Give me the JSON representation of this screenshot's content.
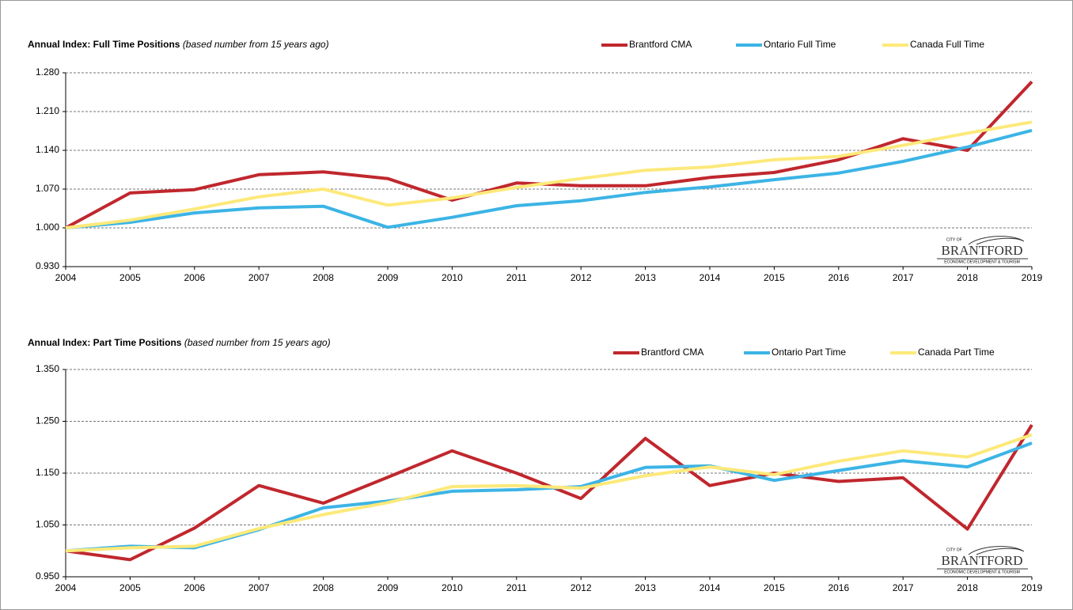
{
  "logo": {
    "city": "CITY OF",
    "name": "BRANTFORD",
    "tagline": "ECONOMIC DEVELOPMENT & TOURISM"
  },
  "chart_data": [
    {
      "type": "line",
      "title": "Annual Index: Full Time Positions",
      "subtitle": "(based number from 15 years ago)",
      "categories": [
        "2004",
        "2005",
        "2006",
        "2007",
        "2008",
        "2009",
        "2010",
        "2011",
        "2012",
        "2013",
        "2014",
        "2015",
        "2016",
        "2017",
        "2018",
        "2019"
      ],
      "ylim": [
        0.93,
        1.28
      ],
      "yticks": [
        {
          "value": 0.93,
          "label": "0.930"
        },
        {
          "value": 1,
          "label": "1.000"
        },
        {
          "value": 1.07,
          "label": "1.070"
        },
        {
          "value": 1.14,
          "label": "1.140"
        },
        {
          "value": 1.21,
          "label": "1.210"
        },
        {
          "value": 1.28,
          "label": "1.280"
        }
      ],
      "grid": true,
      "legend": "top-right",
      "series": [
        {
          "name": "Brantford CMA",
          "color": "#c0272d",
          "values": [
            1.0,
            1.063,
            1.069,
            1.096,
            1.101,
            1.089,
            1.05,
            1.081,
            1.076,
            1.076,
            1.091,
            1.1,
            1.123,
            1.161,
            1.14,
            1.264
          ]
        },
        {
          "name": "Ontario Full Time",
          "color": "#3cb4e5",
          "values": [
            1.0,
            1.01,
            1.027,
            1.036,
            1.039,
            1.001,
            1.019,
            1.04,
            1.049,
            1.064,
            1.074,
            1.087,
            1.099,
            1.12,
            1.146,
            1.176
          ]
        },
        {
          "name": "Canada Full Time",
          "color": "#fde97a",
          "values": [
            1.0,
            1.014,
            1.034,
            1.056,
            1.07,
            1.041,
            1.054,
            1.073,
            1.089,
            1.104,
            1.11,
            1.123,
            1.129,
            1.149,
            1.171,
            1.191
          ]
        }
      ]
    },
    {
      "type": "line",
      "title": "Annual Index: Part Time Positions",
      "subtitle": "(based number from 15 years ago)",
      "categories": [
        "2004",
        "2005",
        "2006",
        "2007",
        "2008",
        "2009",
        "2010",
        "2011",
        "2012",
        "2013",
        "2014",
        "2015",
        "2016",
        "2017",
        "2018",
        "2019"
      ],
      "ylim": [
        0.95,
        1.35
      ],
      "yticks": [
        {
          "value": 0.95,
          "label": "0.950"
        },
        {
          "value": 1.05,
          "label": "1.050"
        },
        {
          "value": 1.15,
          "label": "1.150"
        },
        {
          "value": 1.25,
          "label": "1.250"
        },
        {
          "value": 1.35,
          "label": "1.350"
        }
      ],
      "grid": true,
      "legend": "top-right",
      "series": [
        {
          "name": "Brantford CMA",
          "color": "#c0272d",
          "values": [
            1.0,
            0.983,
            1.044,
            1.126,
            1.092,
            1.142,
            1.193,
            1.15,
            1.101,
            1.217,
            1.126,
            1.15,
            1.134,
            1.141,
            1.042,
            1.243
          ]
        },
        {
          "name": "Ontario Part Time",
          "color": "#3cb4e5",
          "values": [
            1.0,
            1.009,
            1.006,
            1.041,
            1.083,
            1.096,
            1.115,
            1.118,
            1.124,
            1.161,
            1.164,
            1.136,
            1.155,
            1.174,
            1.162,
            1.208
          ]
        },
        {
          "name": "Canada Part Time",
          "color": "#fde97a",
          "values": [
            1.0,
            1.006,
            1.009,
            1.043,
            1.07,
            1.093,
            1.124,
            1.126,
            1.121,
            1.145,
            1.162,
            1.147,
            1.173,
            1.193,
            1.181,
            1.224
          ]
        }
      ]
    }
  ]
}
